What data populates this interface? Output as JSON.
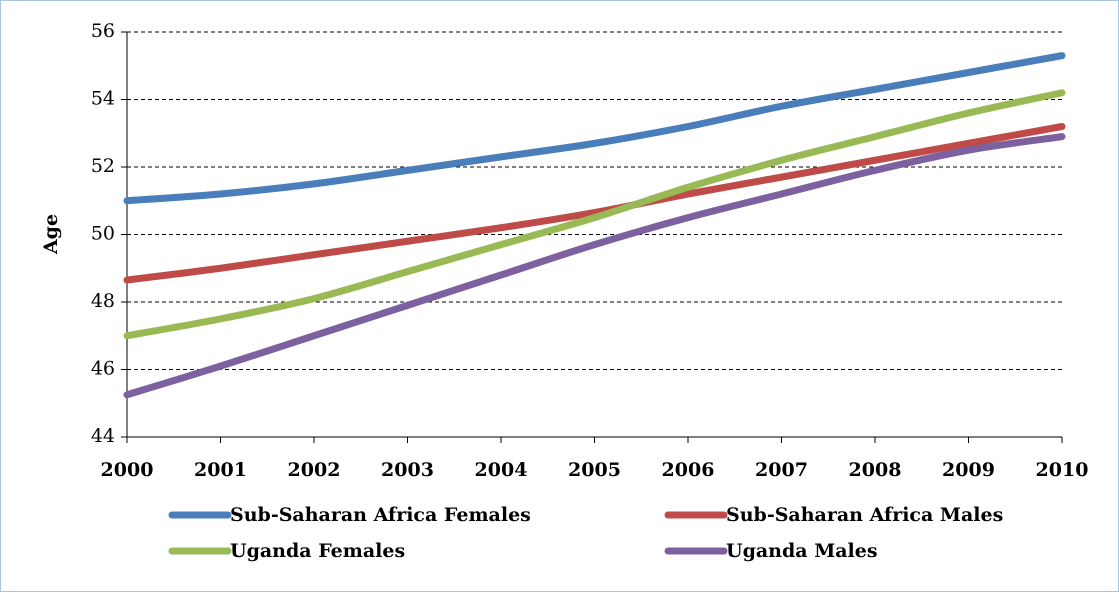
{
  "chart_data": {
    "type": "line",
    "y_label": "Age",
    "x": [
      2000,
      2001,
      2002,
      2003,
      2004,
      2005,
      2006,
      2007,
      2008,
      2009,
      2010
    ],
    "xlim": [
      2000,
      2010
    ],
    "xticks": [
      2000,
      2001,
      2002,
      2003,
      2004,
      2005,
      2006,
      2007,
      2008,
      2009,
      2010
    ],
    "ylim": [
      44,
      56
    ],
    "yticks": [
      44,
      46,
      48,
      50,
      52,
      54,
      56
    ],
    "grid": true,
    "legend": "bottom",
    "series": [
      {
        "name": "Sub-Saharan Africa Females",
        "color": "#4a7ebb",
        "values": [
          51.0,
          51.2,
          51.5,
          51.9,
          52.3,
          52.7,
          53.2,
          53.8,
          54.3,
          54.8,
          55.3
        ]
      },
      {
        "name": "Sub-Saharan Africa Males",
        "color": "#be4b48",
        "values": [
          48.65,
          49.0,
          49.4,
          49.8,
          50.2,
          50.65,
          51.2,
          51.7,
          52.2,
          52.7,
          53.2
        ]
      },
      {
        "name": "Uganda Females",
        "color": "#98b954",
        "values": [
          47.0,
          47.5,
          48.1,
          48.9,
          49.7,
          50.5,
          51.4,
          52.2,
          52.9,
          53.6,
          54.2
        ]
      },
      {
        "name": "Uganda Males",
        "color": "#7d60a0",
        "values": [
          45.25,
          46.1,
          47.0,
          47.9,
          48.8,
          49.7,
          50.5,
          51.2,
          51.9,
          52.5,
          52.9
        ]
      }
    ]
  }
}
